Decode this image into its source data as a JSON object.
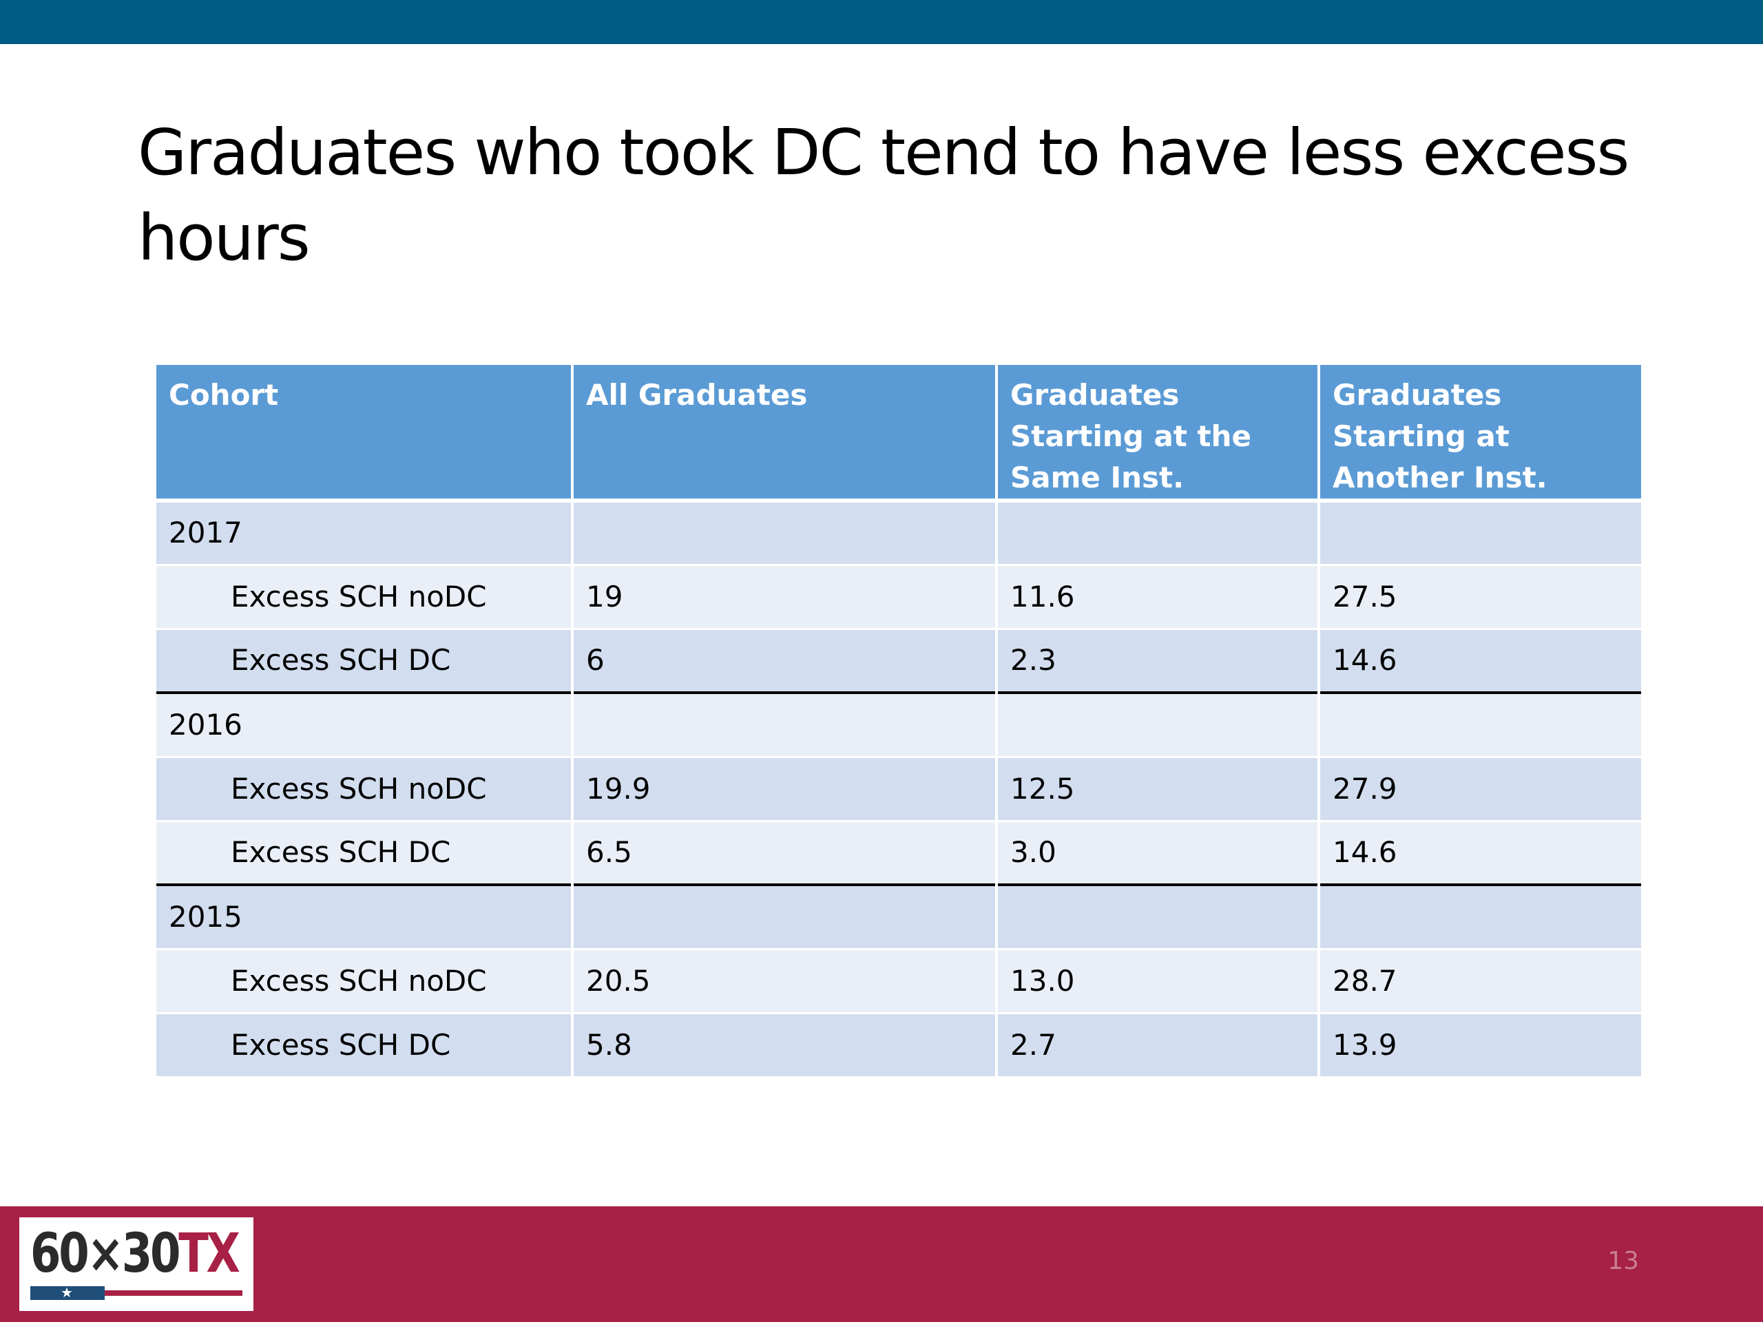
{
  "slide": {
    "title": "Graduates who took DC tend to have less excess hours",
    "page_number": "13"
  },
  "logo": {
    "text_main": "60×30",
    "text_accent": "TX",
    "star": "★"
  },
  "colors": {
    "top_bar": "#005b85",
    "footer_bar": "#a72045",
    "table_header": "#5b9bd5",
    "row_dark": "#d2deef",
    "row_light": "#eaeff7"
  },
  "table": {
    "headers": [
      "Cohort",
      "All Graduates",
      "Graduates Starting at the Same  Inst.",
      "Graduates Starting at Another Inst."
    ],
    "rows": [
      [
        "2017",
        "",
        "",
        ""
      ],
      [
        "Excess SCH noDC",
        "19",
        "11.6",
        "27.5"
      ],
      [
        "Excess SCH DC",
        "6",
        "2.3",
        "14.6"
      ],
      [
        "2016",
        "",
        "",
        ""
      ],
      [
        "Excess SCH noDC",
        "19.9",
        "12.5",
        "27.9"
      ],
      [
        "Excess SCH DC",
        "6.5",
        "3.0",
        "14.6"
      ],
      [
        "2015",
        "",
        "",
        ""
      ],
      [
        "Excess SCH noDC",
        "20.5",
        "13.0",
        "28.7"
      ],
      [
        "Excess SCH DC",
        "5.8",
        "2.7",
        "13.9"
      ]
    ]
  }
}
